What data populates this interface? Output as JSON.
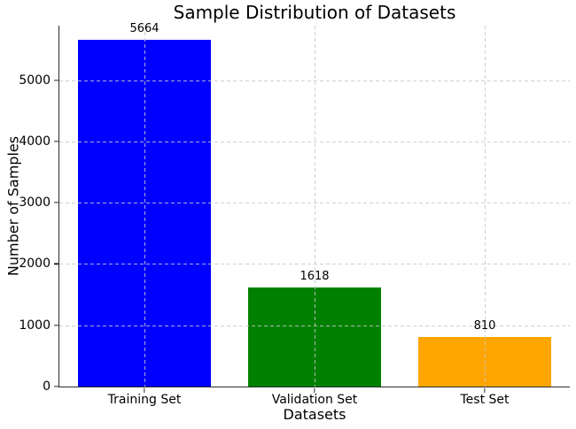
{
  "figure": {
    "background": "#ffffff",
    "text_color": "#000000",
    "spine_color": "#2b2b2b"
  },
  "chart_data": {
    "type": "bar",
    "title": "Sample Distribution of Datasets",
    "xlabel": "Datasets",
    "ylabel": "Number of Samples",
    "categories": [
      "Training Set",
      "Validation Set",
      "Test Set"
    ],
    "values": [
      5664,
      1618,
      810
    ],
    "value_labels": [
      "5664",
      "1618",
      "810"
    ],
    "bar_colors": [
      "#0000ff",
      "#008000",
      "#ffa500"
    ],
    "yticks": [
      0,
      1000,
      2000,
      3000,
      4000,
      5000
    ],
    "ytick_labels": [
      "0",
      "1000",
      "2000",
      "3000",
      "4000",
      "5000"
    ],
    "ylim": [
      0,
      5890
    ],
    "bar_width_fraction": 0.78,
    "grid": {
      "visible": true,
      "axis": "both",
      "style": "dashed",
      "color": "#c8c8c8",
      "above_bars": true
    },
    "legend": {
      "visible": false
    },
    "spines": {
      "left": true,
      "bottom": true,
      "top": false,
      "right": false
    }
  }
}
